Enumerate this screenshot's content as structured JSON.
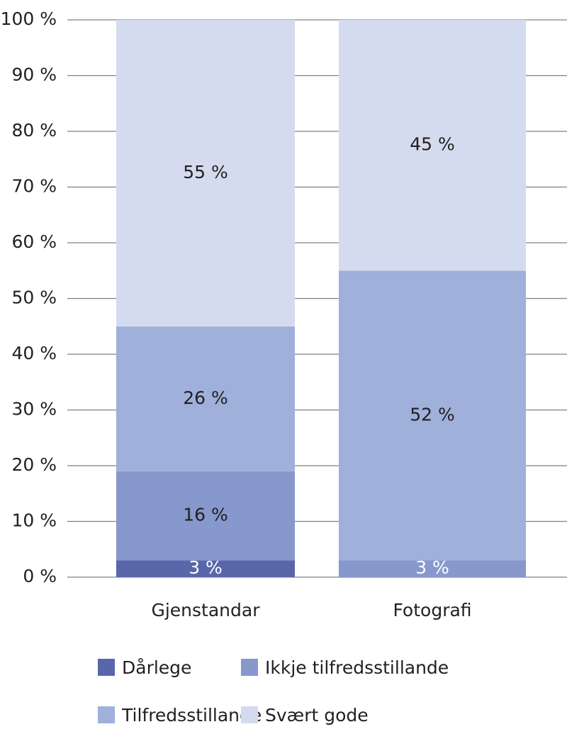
{
  "chart_data": {
    "type": "stacked_bar",
    "categories": [
      "Gjenstandar",
      "Fotografi"
    ],
    "series": [
      {
        "name": "Dårlege",
        "color": "#5a66aa",
        "values": [
          3,
          0
        ],
        "value_labels": [
          "3 %",
          null
        ]
      },
      {
        "name": "Ikkje tilfredsstillande",
        "color": "#8698cc",
        "values": [
          16,
          3
        ],
        "value_labels": [
          "16 %",
          "3 %"
        ]
      },
      {
        "name": "Tilfredsstillande",
        "color": "#9fb0da",
        "values": [
          26,
          52
        ],
        "value_labels": [
          "26 %",
          "52 %"
        ]
      },
      {
        "name": "Svært gode",
        "color": "#d5dbef",
        "values": [
          55,
          45
        ],
        "value_labels": [
          "55 %",
          "45 %"
        ]
      }
    ],
    "ylim": [
      0,
      100
    ],
    "yticks": [
      {
        "value": 0,
        "label": "0 %"
      },
      {
        "value": 10,
        "label": "10 %"
      },
      {
        "value": 20,
        "label": "20 %"
      },
      {
        "value": 30,
        "label": "30 %"
      },
      {
        "value": 40,
        "label": "40 %"
      },
      {
        "value": 50,
        "label": "50 %"
      },
      {
        "value": 60,
        "label": "60 %"
      },
      {
        "value": 70,
        "label": "70 %"
      },
      {
        "value": 80,
        "label": "80 %"
      },
      {
        "value": 90,
        "label": "90 %"
      },
      {
        "value": 100,
        "label": "100 %"
      }
    ],
    "grid": true
  }
}
